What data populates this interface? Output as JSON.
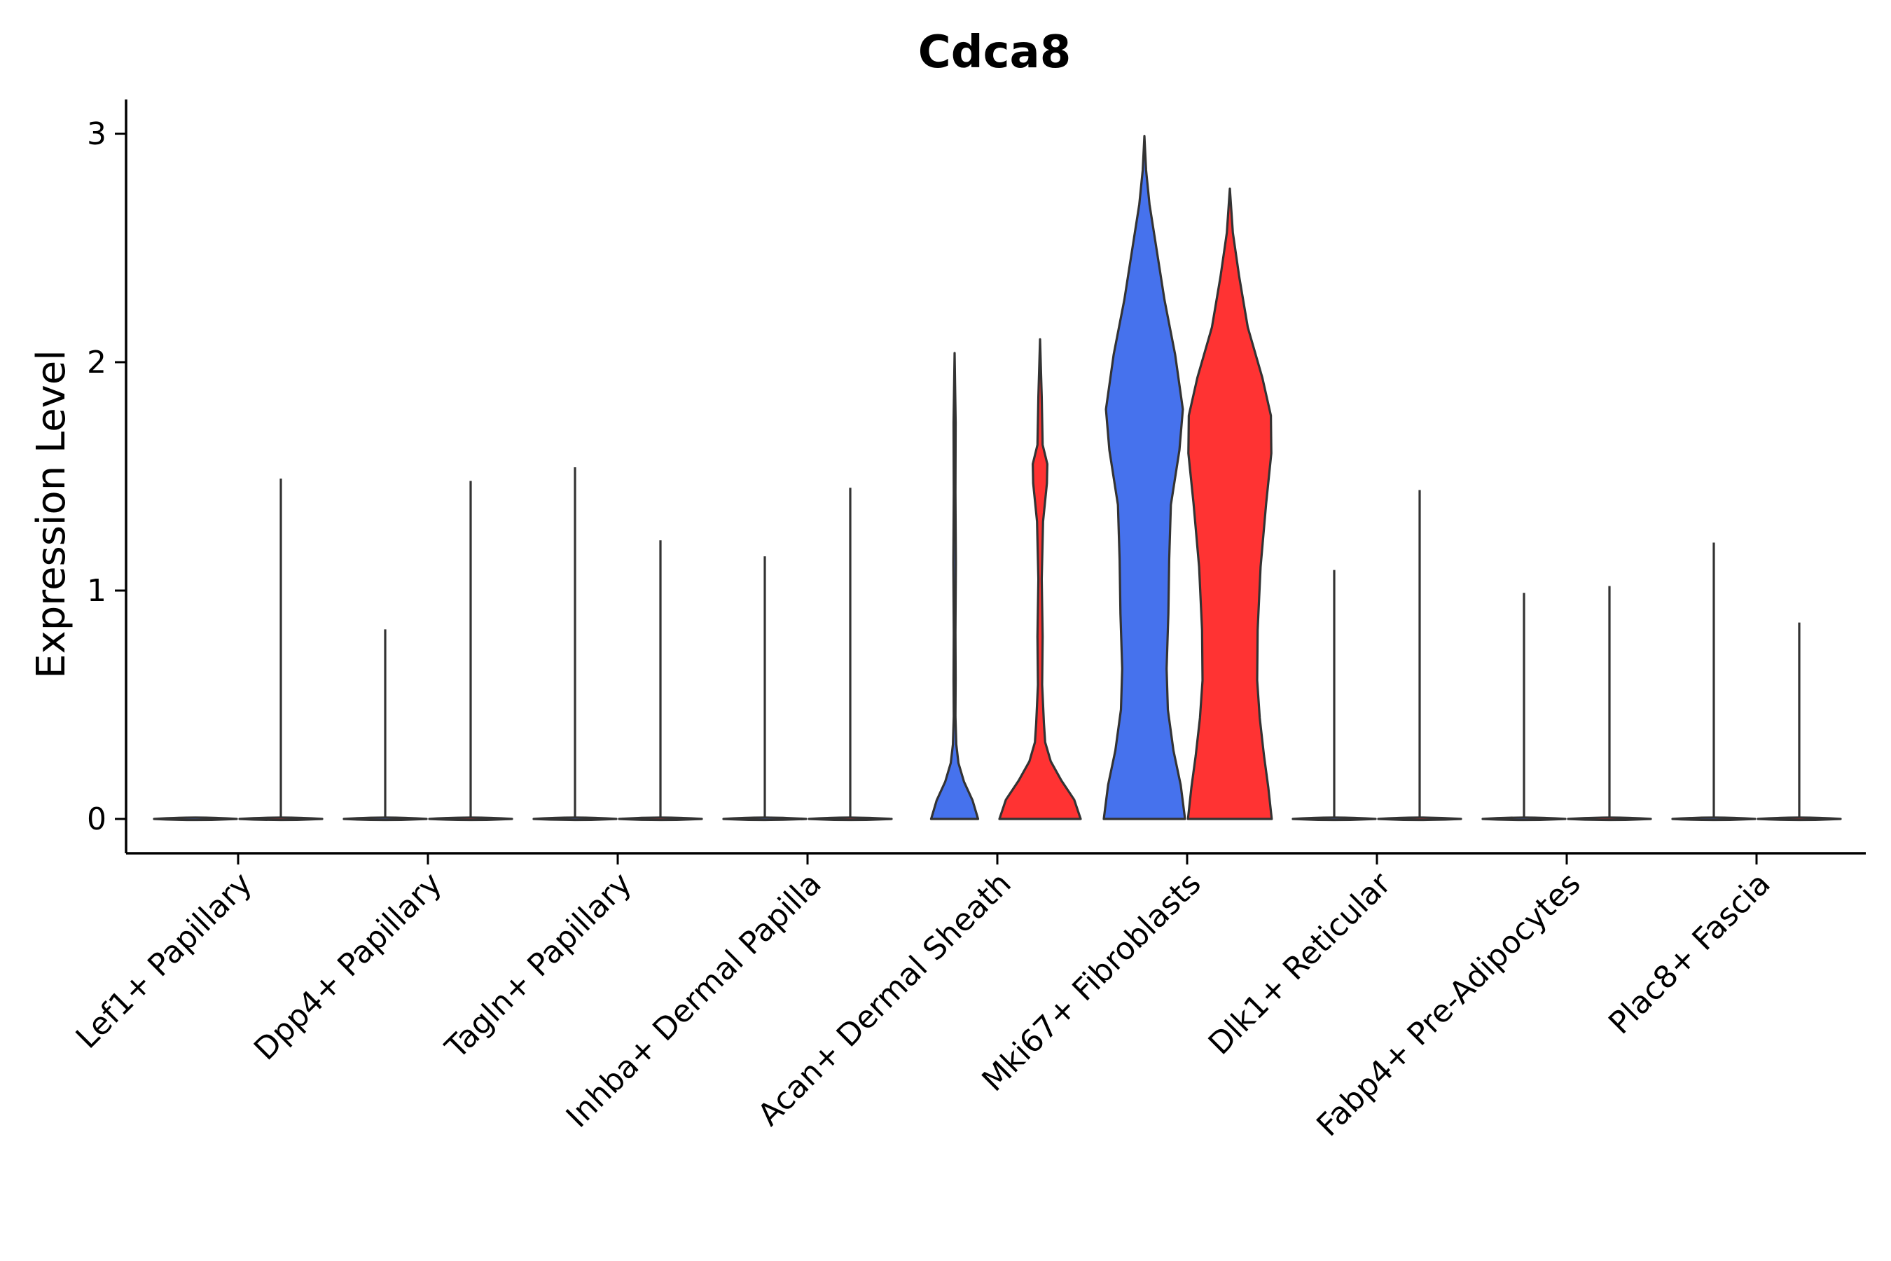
{
  "chart_data": {
    "type": "violin",
    "title": "Cdca8",
    "xlabel": "",
    "ylabel": "Expression Level",
    "ylim": [
      -0.15,
      3.15
    ],
    "yticks": [
      0,
      1,
      2,
      3
    ],
    "ytick_labels": [
      "0",
      "1",
      "2",
      "3"
    ],
    "grid": false,
    "legend": "none",
    "categories": [
      "Lef1+ Papillary",
      "Dpp4+ Papillary",
      "Tagln+ Papillary",
      "Inhba+ Dermal Papilla",
      "Acan+ Dermal Sheath",
      "Mki67+ Fibroblasts",
      "Dlk1+ Reticular",
      "Fabp4+ Pre-Adipocytes",
      "Plac8+ Fascia"
    ],
    "series": [
      {
        "name": "group-1",
        "color": "#4672ED",
        "max_values": [
          0.0,
          0.83,
          1.54,
          1.15,
          2.04,
          2.99,
          1.09,
          0.99,
          1.21
        ]
      },
      {
        "name": "group-2",
        "color": "#FF3333",
        "max_values": [
          1.49,
          1.48,
          1.22,
          1.45,
          2.1,
          2.76,
          1.44,
          1.02,
          0.86
        ]
      }
    ]
  }
}
